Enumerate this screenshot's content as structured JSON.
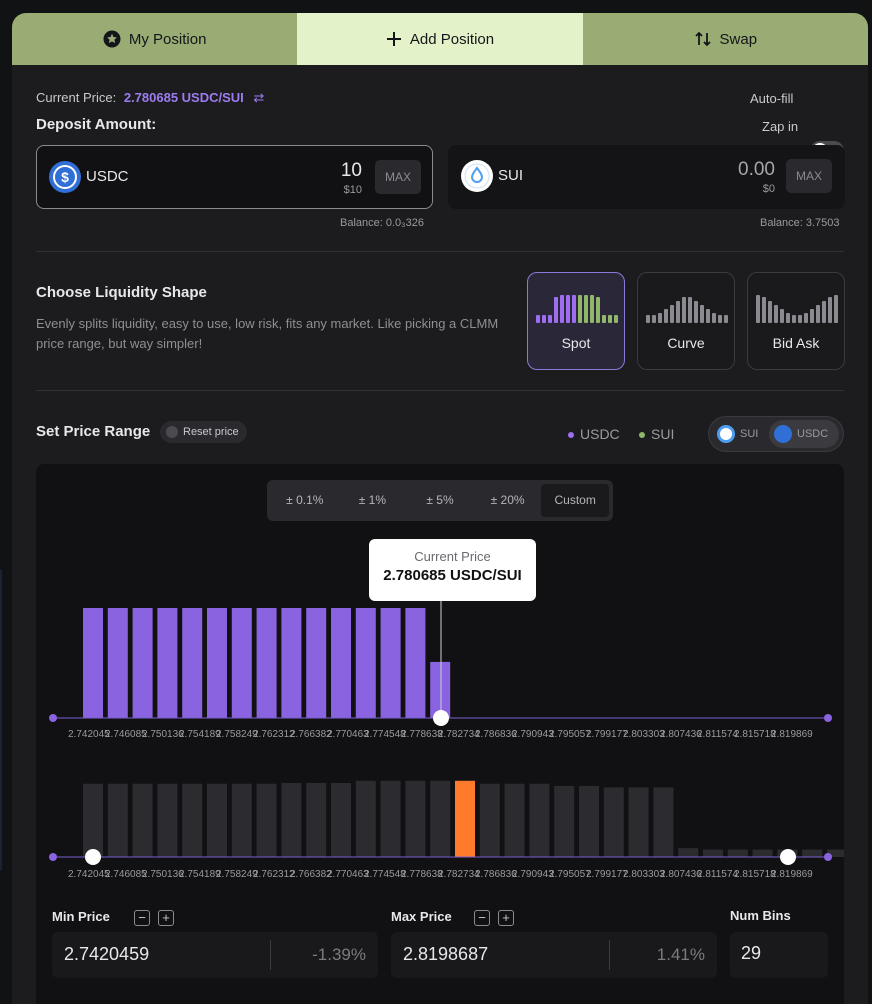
{
  "tabs": [
    {
      "label": "My Position",
      "icon": "star-icon",
      "active": false
    },
    {
      "label": "Add Position",
      "icon": "plus-icon",
      "active": true
    },
    {
      "label": "Swap",
      "icon": "swap-icon",
      "active": false
    }
  ],
  "current_price": {
    "label": "Current Price:",
    "value": "2.780685 USDC/SUI"
  },
  "deposit": {
    "title": "Deposit Amount:",
    "autofill_label": "Auto-fill",
    "zapin_label": "Zap in",
    "usdc": {
      "token": "USDC",
      "amount": "10",
      "usd": "$10",
      "max": "MAX",
      "balance": "Balance: 0.0₃326"
    },
    "sui": {
      "token": "SUI",
      "amount": "0.00",
      "usd": "$0",
      "max": "MAX",
      "balance": "Balance: 3.7503"
    }
  },
  "shape": {
    "title": "Choose Liquidity Shape",
    "description": "Evenly splits liquidity, easy to use, low risk, fits any market. Like picking a CLMM price range, but way simpler!",
    "options": [
      {
        "label": "Spot",
        "active": true
      },
      {
        "label": "Curve",
        "active": false
      },
      {
        "label": "Bid Ask",
        "active": false
      }
    ]
  },
  "range": {
    "title": "Set Price Range",
    "reset_label": "Reset price",
    "legend": [
      {
        "label": "USDC",
        "color": "#9d6ff0"
      },
      {
        "label": "SUI",
        "color": "#8fb66b"
      }
    ],
    "token_toggle": [
      "SUI",
      "USDC"
    ],
    "percent_options": [
      "± 0.1%",
      "± 1%",
      "± 5%",
      "± 20%",
      "Custom"
    ],
    "tooltip_title": "Current Price",
    "tooltip_value": "2.780685 USDC/SUI",
    "axis_labels": [
      "2.742045",
      "2.746085",
      "2.750136",
      "2.754189",
      "2.758249",
      "2.762312",
      "2.766382",
      "2.770463",
      "2.774548",
      "2.778638",
      "2.782734",
      "2.786836",
      "2.790943",
      "2.795057",
      "2.799177",
      "2.803303",
      "2.807436",
      "2.811574",
      "2.815718",
      "2.819869"
    ]
  },
  "min_price": {
    "label": "Min Price",
    "value": "2.7420459",
    "pct": "-1.39%"
  },
  "max_price": {
    "label": "Max Price",
    "value": "2.8198687",
    "pct": "1.41%"
  },
  "num_bins": {
    "label": "Num Bins",
    "value": "29"
  },
  "chart_data": [
    {
      "type": "bar",
      "description_series": "Liquidity distribution (top)",
      "series": [
        {
          "name": "USDC",
          "color": "#8a63e0",
          "values": [
            1,
            1,
            1,
            1,
            1,
            1,
            1,
            1,
            1,
            1,
            1,
            1,
            1,
            1,
            0.51
          ]
        }
      ]
    },
    {
      "type": "bar",
      "series": [
        {
          "values": [
            0.99,
            0.99,
            0.99,
            0.99,
            0.99,
            0.99,
            0.99,
            0.99,
            1,
            1,
            1,
            1.03,
            1.03,
            1.03,
            1.03,
            1.03,
            0.99,
            0.99,
            0.99,
            0.96,
            0.96,
            0.94,
            0.94,
            0.94,
            0.12,
            0.1,
            0.1,
            0.1,
            0.1,
            0.1,
            0.1,
            0.1
          ],
          "highlight_index": 15,
          "highlight_color": "#ff7a2a",
          "color": "#2c2c30"
        }
      ]
    }
  ]
}
